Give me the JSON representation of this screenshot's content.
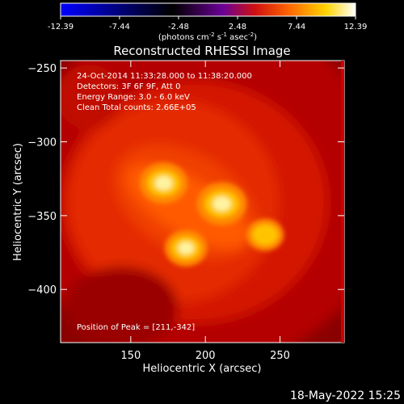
{
  "colorbar": {
    "ticks": [
      "-12.39",
      "-7.44",
      "-2.48",
      "2.48",
      "7.44",
      "12.39"
    ],
    "tick_values": [
      -12.39,
      -7.44,
      -2.48,
      2.48,
      7.44,
      12.39
    ],
    "range": [
      -12.39,
      12.39
    ],
    "units_text": "(photons cm",
    "units_exp1": "-2",
    "units_mid": " s",
    "units_exp2": "-1",
    "units_mid2": " asec",
    "units_exp3": "-2",
    "units_close": ")",
    "colors": [
      "#0000ff",
      "#000000",
      "#6a0096",
      "#d01010",
      "#ff6a00",
      "#ffd400",
      "#ffffff"
    ]
  },
  "chart_data": {
    "type": "heatmap",
    "title": "Reconstructed RHESSI Image",
    "xlabel": "Heliocentric X (arcsec)",
    "ylabel": "Heliocentric Y (arcsec)",
    "xlim": [
      103,
      293
    ],
    "ylim": [
      -436,
      -245
    ],
    "xticks": [
      150,
      200,
      250
    ],
    "yticks": [
      -250,
      -300,
      -350,
      -400
    ],
    "xtick_labels": [
      "150",
      "200",
      "250"
    ],
    "ytick_labels": [
      "−250",
      "−300",
      "−350",
      "−400"
    ],
    "annotations": [
      "24-Oct-2014 11:33:28.000 to 11:38:20.000",
      "Detectors: 3F 6F 9F, Att 0",
      "Energy Range: 3.0 - 6.0 keV",
      "Clean    Total counts: 2.66E+05"
    ],
    "peak_label": "Position of Peak = [211,-342]",
    "sources": [
      {
        "x": 211,
        "y": -342,
        "relative_intensity": 1.0
      },
      {
        "x": 172,
        "y": -328,
        "relative_intensity": 0.92
      },
      {
        "x": 187,
        "y": -372,
        "relative_intensity": 0.7
      },
      {
        "x": 240,
        "y": -363,
        "relative_intensity": 0.5
      }
    ]
  },
  "footer": {
    "date": "18-May-2022 15:25"
  }
}
